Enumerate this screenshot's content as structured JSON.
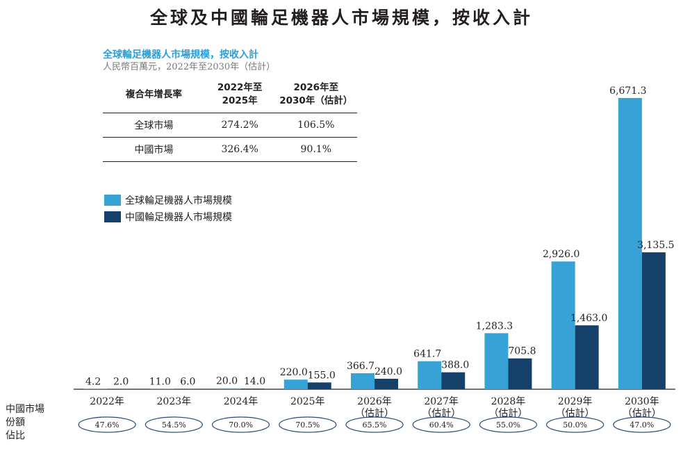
{
  "title": "全球及中國輪足機器人市場規模，按收入計",
  "cagr_table": {
    "title": "全球輪足機器人市場規模，按收入計",
    "unit": "人民幣百萬元，2022年至2030年（估計）",
    "headers": [
      "複合年增長率",
      "2022年至\n2025年",
      "2026年至\n2030年（估計）"
    ],
    "rows": [
      {
        "label": "全球市場",
        "v1": "274.2%",
        "v2": "106.5%"
      },
      {
        "label": "中國市場",
        "v1": "326.4%",
        "v2": "90.1%"
      }
    ]
  },
  "share_label": "中國市場\n份額\n佔比",
  "chart_data": {
    "type": "bar",
    "categories": [
      "2022年",
      "2023年",
      "2024年",
      "2025年",
      "2026年\n（估計）",
      "2027年\n（估計）",
      "2028年\n（估計）",
      "2029年\n（估計）",
      "2030年\n（估計）"
    ],
    "series": [
      {
        "name": "全球輪足機器人市場規模",
        "color": "#36a2d6",
        "values": [
          4.2,
          11.0,
          20.0,
          220.0,
          366.7,
          641.7,
          1283.3,
          2926.0,
          6671.3
        ],
        "labels": [
          "4.2",
          "11.0",
          "20.0",
          "220.0",
          "366.7",
          "641.7",
          "1,283.3",
          "2,926.0",
          "6,671.3"
        ]
      },
      {
        "name": "中國輪足機器人市場規模",
        "color": "#15406a",
        "values": [
          2.0,
          6.0,
          14.0,
          155.0,
          240.0,
          388.0,
          705.8,
          1463.0,
          3135.5
        ],
        "labels": [
          "2.0",
          "6.0",
          "14.0",
          "155.0",
          "240.0",
          "388.0",
          "705.8",
          "1,463.0",
          "3,135.5"
        ]
      }
    ],
    "china_share": [
      "47.6%",
      "54.5%",
      "70.0%",
      "70.5%",
      "65.5%",
      "60.4%",
      "55.0%",
      "50.0%",
      "47.0%"
    ],
    "legend_position": "left",
    "grid": false
  }
}
